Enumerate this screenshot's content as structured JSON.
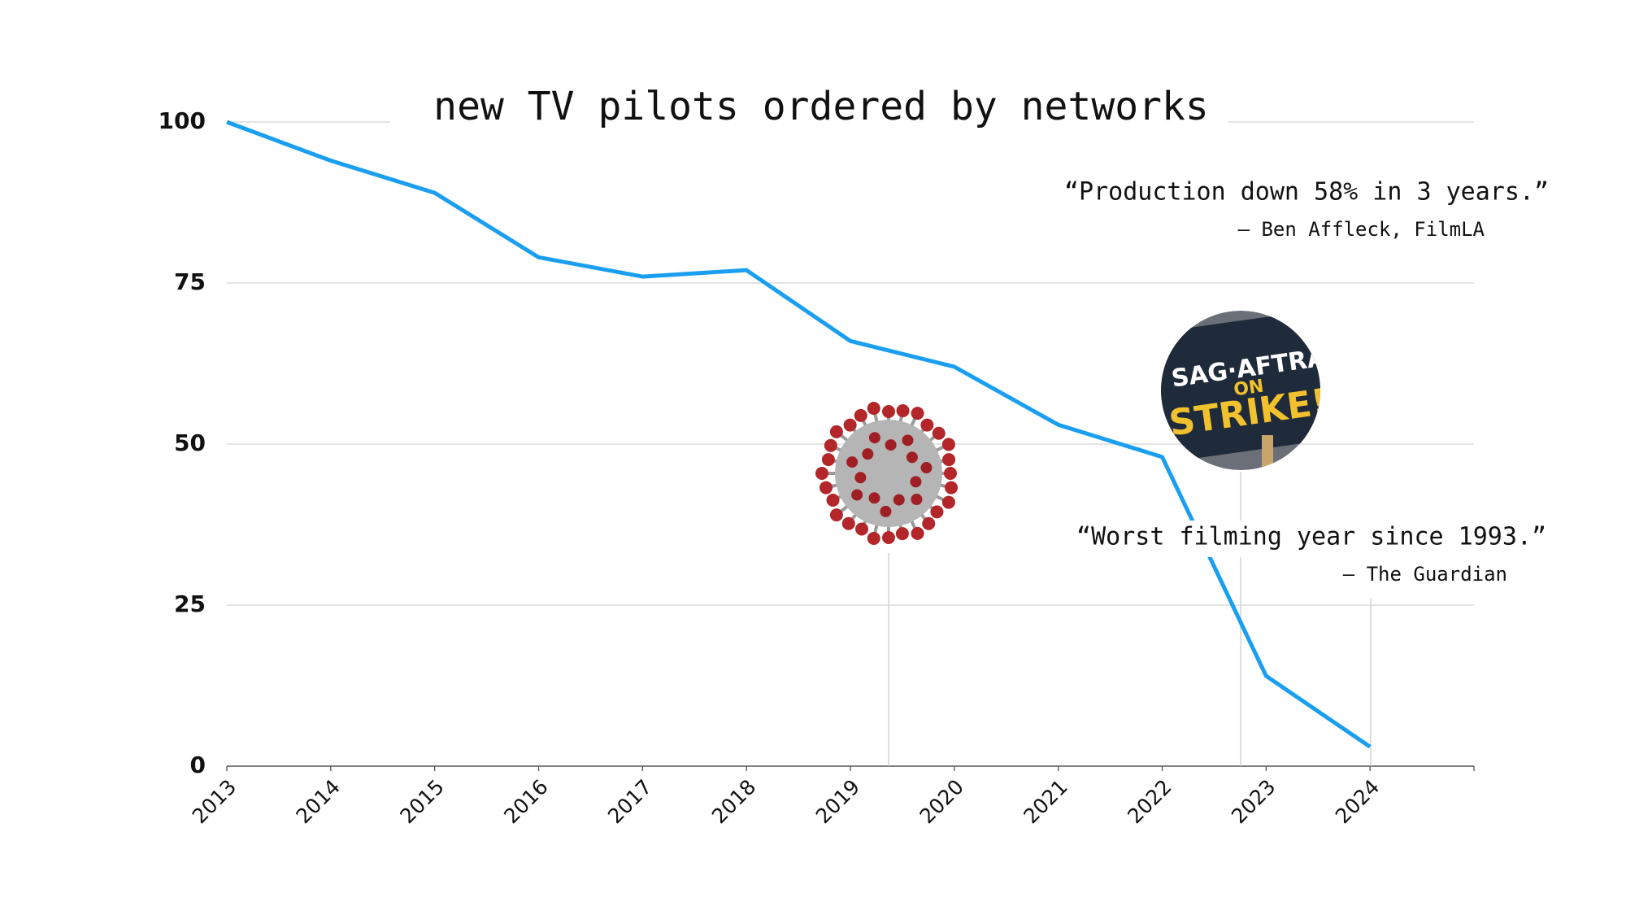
{
  "chart_data": {
    "type": "line",
    "title": "new TV pilots ordered by networks",
    "x": [
      2013,
      2014,
      2015,
      2016,
      2017,
      2018,
      2019,
      2020,
      2021,
      2022,
      2023,
      2024
    ],
    "values": [
      100,
      94,
      89,
      79,
      76,
      77,
      66,
      62,
      53,
      48,
      14,
      3
    ],
    "color": "#1a9ff0",
    "xlim": [
      2013,
      2025
    ],
    "xticks": [
      2013,
      2014,
      2015,
      2016,
      2017,
      2018,
      2019,
      2020,
      2021,
      2022,
      2023,
      2024
    ],
    "ylim": [
      0,
      100
    ],
    "yticks": [
      0,
      25,
      50,
      75,
      100
    ],
    "grid": true,
    "annotations": [
      {
        "quote": "“Production down 58% in 3 years.”",
        "source": "— Ben Affleck, FilmLA"
      },
      {
        "quote": "“Worst filming year since 1993.”",
        "source": "— The Guardian"
      }
    ],
    "strike_sign": [
      "SAG·AFTRA",
      "ON",
      "STRIKE!"
    ]
  }
}
